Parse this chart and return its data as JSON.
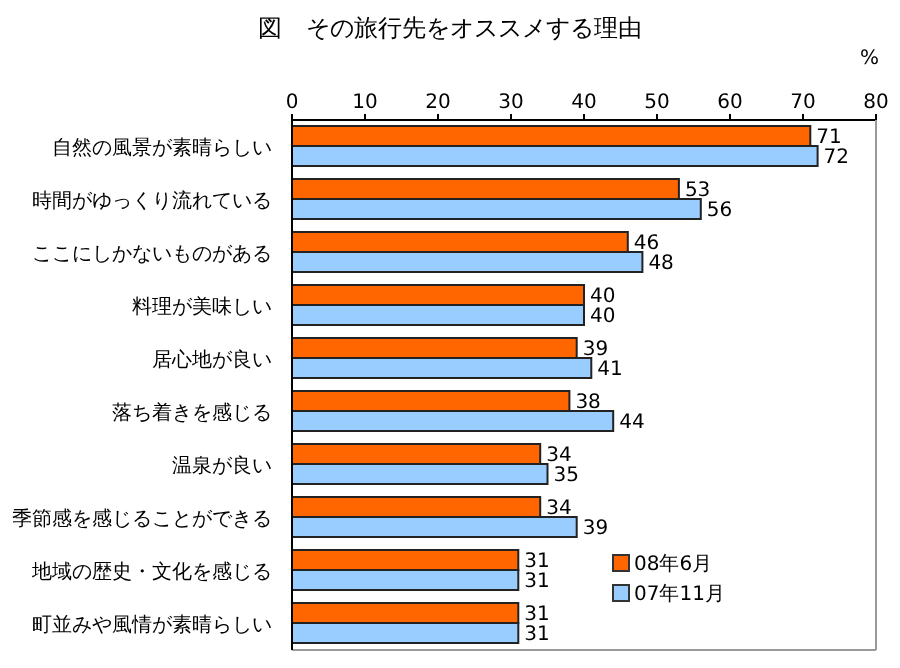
{
  "chart_data": {
    "type": "bar",
    "orientation": "horizontal",
    "title": "図　その旅行先をオススメする理由",
    "xlabel": "%",
    "categories": [
      "自然の風景が素晴らしい",
      "時間がゆっくり流れている",
      "ここにしかないものがある",
      "料理が美味しい",
      "居心地が良い",
      "落ち着きを感じる",
      "温泉が良い",
      "季節感を感じることができる",
      "地域の歴史・文化を感じる",
      "町並みや風情が素晴らしい"
    ],
    "series": [
      {
        "name": "08年6月",
        "color": "#ff6600",
        "values": [
          71,
          53,
          46,
          40,
          39,
          38,
          34,
          34,
          31,
          31
        ]
      },
      {
        "name": "07年11月",
        "color": "#99ccff",
        "values": [
          72,
          56,
          48,
          40,
          41,
          44,
          35,
          39,
          31,
          31
        ]
      }
    ],
    "xlim": [
      0,
      80
    ],
    "xticks": [
      0,
      10,
      20,
      30,
      40,
      50,
      60,
      70,
      80
    ],
    "data_labels": true,
    "legend": "bottom right",
    "grid": false
  }
}
